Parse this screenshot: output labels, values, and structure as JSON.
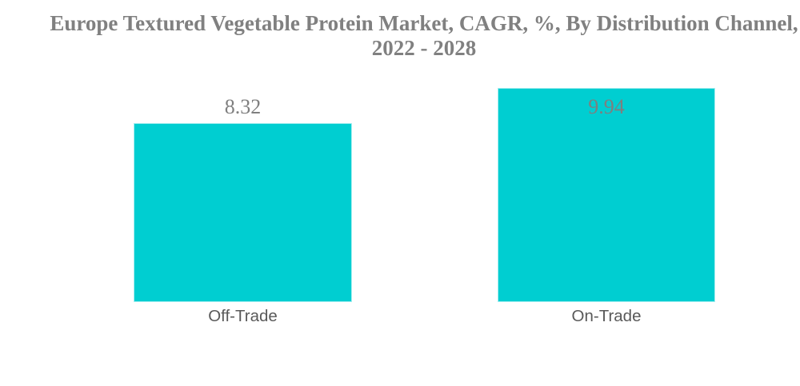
{
  "chart_data": {
    "type": "bar",
    "title": "Europe Textured Vegetable Protein Market, CAGR, %, By Distribution Channel, 2022 - 2028",
    "categories": [
      "Off-Trade",
      "On-Trade"
    ],
    "values": [
      8.32,
      9.94
    ],
    "value_labels": [
      "8.32",
      "9.94"
    ],
    "xlabel": "",
    "ylabel": "",
    "ylim": [
      0,
      11
    ],
    "grid": false,
    "legend": false,
    "bar_color": "#00CED1"
  },
  "colors": {
    "background": "#FFFFFF",
    "bar_fill": "#00CED1",
    "bar_edge": "#A8EEF0",
    "title_text": "#808080",
    "value_label_text": "#7F7F7F",
    "category_label_text": "#595959"
  }
}
